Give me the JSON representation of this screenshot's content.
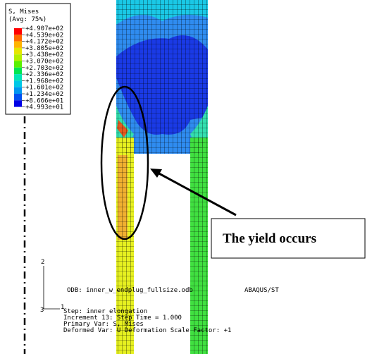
{
  "legend": {
    "title": "S, Mises",
    "subtitle": "(Avg: 75%)",
    "levels": [
      "+4.907e+02",
      "+4.539e+02",
      "+4.172e+02",
      "+3.805e+02",
      "+3.438e+02",
      "+3.070e+02",
      "+2.703e+02",
      "+2.336e+02",
      "+1.968e+02",
      "+1.601e+02",
      "+1.234e+02",
      "+8.666e+01",
      "+4.993e+01"
    ]
  },
  "annotation": "The yield occurs",
  "triad": {
    "axis_2": "2",
    "axis_3": "3",
    "axis_1": "1"
  },
  "info": {
    "odb": "ODB: inner_w_endplug_fullsize.odb",
    "solver": "ABAQUS/ST",
    "step": "Step: inner elongation",
    "increment": "Increment    13: Step Time =    1.000",
    "primary": "Primary Var: S, Mises",
    "deformed": "Deformed Var: U   Deformation Scale Factor: +1"
  }
}
